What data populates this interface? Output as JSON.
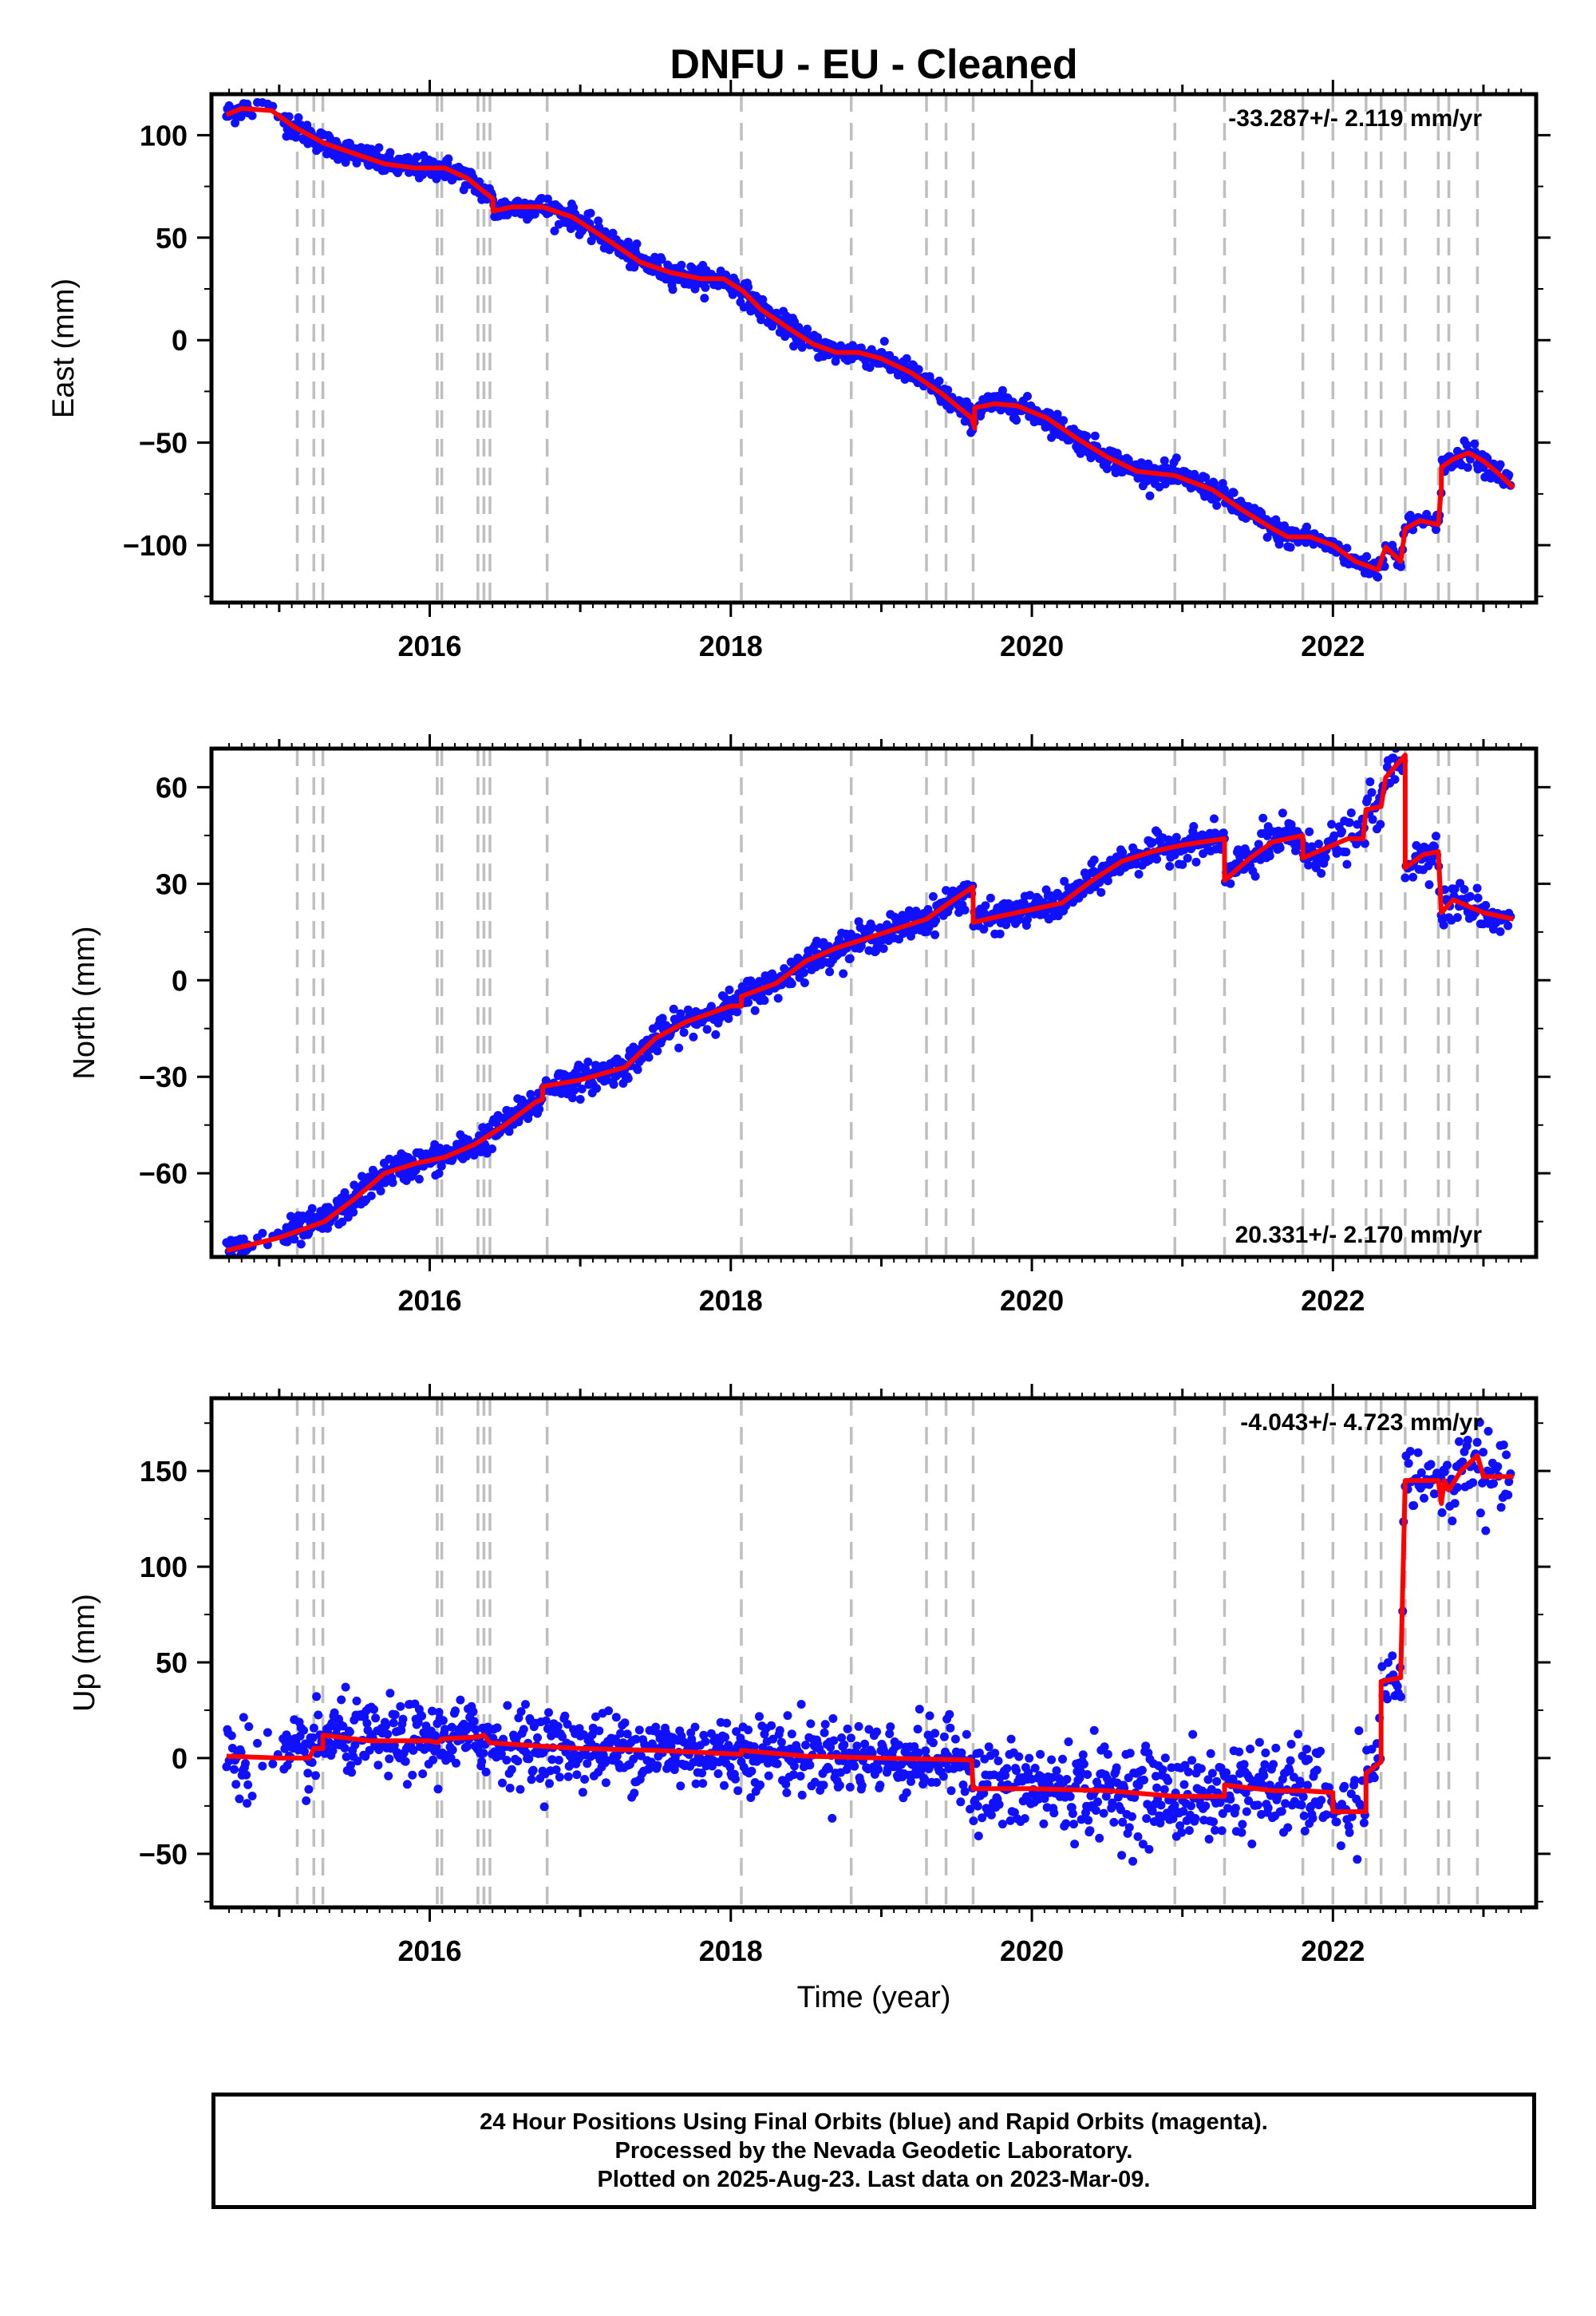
{
  "title": "DNFU  - EU - Cleaned",
  "xlabel": "Time (year)",
  "colors": {
    "points": "#1010ff",
    "model": "#ff0000",
    "events": "#bfbfbf",
    "frame": "#000000"
  },
  "chart_data": [
    {
      "type": "scatter",
      "component": "East",
      "ylabel": "East (mm)",
      "rate_text": "-33.287+/- 2.119 mm/yr",
      "rate_position": "top-right",
      "xlim": [
        2014.55,
        2023.35
      ],
      "ylim": [
        -128,
        120
      ],
      "yticks": [
        100,
        50,
        0,
        -50,
        -100
      ],
      "yticklabels": [
        "100",
        "50",
        "0",
        "−50",
        "−100"
      ],
      "xticks": [
        2016,
        2018,
        2020,
        2022
      ],
      "xticklabels": [
        "2016",
        "2018",
        "2020",
        "2022"
      ],
      "grid": false,
      "model_line": [
        [
          2014.65,
          110
        ],
        [
          2014.75,
          113
        ],
        [
          2014.95,
          112
        ],
        [
          2015.1,
          104
        ],
        [
          2015.2,
          100
        ],
        [
          2015.3,
          96
        ],
        [
          2015.5,
          91
        ],
        [
          2015.7,
          86
        ],
        [
          2015.9,
          84
        ],
        [
          2016.1,
          84
        ],
        [
          2016.25,
          79
        ],
        [
          2016.35,
          73
        ],
        [
          2016.42,
          69
        ],
        [
          2016.42,
          63
        ],
        [
          2016.55,
          65
        ],
        [
          2016.75,
          65
        ],
        [
          2016.95,
          60
        ],
        [
          2017.2,
          48
        ],
        [
          2017.4,
          38
        ],
        [
          2017.6,
          33
        ],
        [
          2017.8,
          30
        ],
        [
          2017.95,
          30
        ],
        [
          2018.08,
          24
        ],
        [
          2018.2,
          15
        ],
        [
          2018.4,
          5
        ],
        [
          2018.55,
          -2
        ],
        [
          2018.7,
          -6
        ],
        [
          2018.85,
          -6
        ],
        [
          2019.0,
          -9
        ],
        [
          2019.2,
          -16
        ],
        [
          2019.4,
          -26
        ],
        [
          2019.6,
          -38
        ],
        [
          2019.62,
          -43
        ],
        [
          2019.62,
          -33
        ],
        [
          2019.75,
          -31
        ],
        [
          2019.9,
          -32
        ],
        [
          2020.1,
          -38
        ],
        [
          2020.3,
          -48
        ],
        [
          2020.5,
          -57
        ],
        [
          2020.7,
          -64
        ],
        [
          2020.95,
          -66
        ],
        [
          2021.2,
          -73
        ],
        [
          2021.4,
          -83
        ],
        [
          2021.6,
          -92
        ],
        [
          2021.7,
          -96
        ],
        [
          2021.85,
          -96
        ],
        [
          2022.0,
          -100
        ],
        [
          2022.15,
          -108
        ],
        [
          2022.3,
          -112
        ],
        [
          2022.35,
          -101
        ],
        [
          2022.45,
          -108
        ],
        [
          2022.48,
          -92
        ],
        [
          2022.58,
          -88
        ],
        [
          2022.7,
          -90
        ],
        [
          2022.72,
          -72
        ],
        [
          2022.72,
          -62
        ],
        [
          2022.8,
          -58
        ],
        [
          2022.9,
          -55
        ],
        [
          2023.0,
          -59
        ],
        [
          2023.1,
          -65
        ],
        [
          2023.2,
          -72
        ]
      ],
      "points_note": "",
      "events": [
        2015.12,
        2015.23,
        2015.29,
        2016.05,
        2016.08,
        2016.32,
        2016.36,
        2016.4,
        2016.78,
        2018.07,
        2018.8,
        2019.3,
        2019.43,
        2019.61,
        2020.95,
        2021.28,
        2021.8,
        2022.0,
        2022.22,
        2022.32,
        2022.48,
        2022.7,
        2022.77,
        2022.96
      ]
    },
    {
      "type": "scatter",
      "component": "North",
      "ylabel": "North (mm)",
      "rate_text": "20.331+/- 2.170 mm/yr",
      "rate_position": "bottom-right",
      "xlim": [
        2014.55,
        2023.35
      ],
      "ylim": [
        -86,
        72
      ],
      "yticks": [
        60,
        30,
        0,
        -30,
        -60
      ],
      "yticklabels": [
        "60",
        "30",
        "0",
        "−30",
        "−60"
      ],
      "xticks": [
        2016,
        2018,
        2020,
        2022
      ],
      "xticklabels": [
        "2016",
        "2018",
        "2020",
        "2022"
      ],
      "grid": false,
      "model_line": [
        [
          2014.65,
          -84
        ],
        [
          2015.0,
          -80
        ],
        [
          2015.3,
          -75
        ],
        [
          2015.5,
          -68
        ],
        [
          2015.7,
          -60
        ],
        [
          2015.9,
          -57
        ],
        [
          2016.1,
          -55
        ],
        [
          2016.3,
          -51
        ],
        [
          2016.5,
          -45
        ],
        [
          2016.7,
          -38
        ],
        [
          2016.75,
          -37
        ],
        [
          2016.75,
          -33
        ],
        [
          2017.0,
          -31
        ],
        [
          2017.3,
          -27
        ],
        [
          2017.5,
          -18
        ],
        [
          2017.7,
          -13
        ],
        [
          2018.0,
          -8
        ],
        [
          2018.07,
          -8
        ],
        [
          2018.07,
          -5
        ],
        [
          2018.3,
          -1
        ],
        [
          2018.5,
          6
        ],
        [
          2018.7,
          10
        ],
        [
          2018.9,
          13
        ],
        [
          2019.1,
          16
        ],
        [
          2019.3,
          19
        ],
        [
          2019.45,
          24
        ],
        [
          2019.61,
          29
        ],
        [
          2019.61,
          18
        ],
        [
          2019.8,
          20
        ],
        [
          2020.0,
          22
        ],
        [
          2020.2,
          24
        ],
        [
          2020.4,
          31
        ],
        [
          2020.6,
          37
        ],
        [
          2020.8,
          40
        ],
        [
          2021.0,
          42
        ],
        [
          2021.28,
          44
        ],
        [
          2021.28,
          31
        ],
        [
          2021.45,
          38
        ],
        [
          2021.6,
          43
        ],
        [
          2021.8,
          45
        ],
        [
          2021.8,
          38
        ],
        [
          2022.0,
          42
        ],
        [
          2022.1,
          44
        ],
        [
          2022.2,
          44
        ],
        [
          2022.22,
          53
        ],
        [
          2022.32,
          54
        ],
        [
          2022.35,
          63
        ],
        [
          2022.48,
          70
        ],
        [
          2022.48,
          35
        ],
        [
          2022.6,
          39
        ],
        [
          2022.7,
          40
        ],
        [
          2022.72,
          21
        ],
        [
          2022.8,
          25
        ],
        [
          2023.0,
          21
        ],
        [
          2023.2,
          19
        ]
      ],
      "points_note": "",
      "events": [
        2015.12,
        2015.23,
        2015.29,
        2016.05,
        2016.08,
        2016.32,
        2016.36,
        2016.4,
        2016.78,
        2018.07,
        2018.8,
        2019.3,
        2019.43,
        2019.61,
        2020.95,
        2021.28,
        2021.8,
        2022.0,
        2022.22,
        2022.32,
        2022.48,
        2022.7,
        2022.77,
        2022.96
      ]
    },
    {
      "type": "scatter",
      "component": "Up",
      "ylabel": "Up (mm)",
      "rate_text": "-4.043+/- 4.723 mm/yr",
      "rate_position": "top-right",
      "xlim": [
        2014.55,
        2023.35
      ],
      "ylim": [
        -78,
        188
      ],
      "yticks": [
        150,
        100,
        50,
        0,
        -50
      ],
      "yticklabels": [
        "150",
        "100",
        "50",
        "0",
        "−50"
      ],
      "xticks": [
        2016,
        2018,
        2020,
        2022
      ],
      "xticklabels": [
        "2016",
        "2018",
        "2020",
        "2022"
      ],
      "grid": false,
      "model_line": [
        [
          2014.65,
          1
        ],
        [
          2015.0,
          0
        ],
        [
          2015.2,
          0
        ],
        [
          2015.23,
          5
        ],
        [
          2015.29,
          5
        ],
        [
          2015.29,
          12
        ],
        [
          2015.6,
          9
        ],
        [
          2016.0,
          9
        ],
        [
          2016.05,
          8
        ],
        [
          2016.08,
          10
        ],
        [
          2016.32,
          11
        ],
        [
          2016.36,
          12
        ],
        [
          2016.4,
          8
        ],
        [
          2016.78,
          6
        ],
        [
          2017.0,
          5
        ],
        [
          2017.5,
          4
        ],
        [
          2018.07,
          2
        ],
        [
          2018.07,
          4
        ],
        [
          2018.5,
          1
        ],
        [
          2019.0,
          0
        ],
        [
          2019.6,
          -1
        ],
        [
          2019.61,
          -16
        ],
        [
          2020.0,
          -16
        ],
        [
          2020.5,
          -17
        ],
        [
          2020.95,
          -20
        ],
        [
          2021.28,
          -20
        ],
        [
          2021.28,
          -14
        ],
        [
          2021.6,
          -17
        ],
        [
          2021.8,
          -17
        ],
        [
          2022.0,
          -18
        ],
        [
          2022.0,
          -28
        ],
        [
          2022.22,
          -28
        ],
        [
          2022.22,
          -8
        ],
        [
          2022.32,
          -2
        ],
        [
          2022.32,
          40
        ],
        [
          2022.45,
          42
        ],
        [
          2022.48,
          145
        ],
        [
          2022.7,
          145
        ],
        [
          2022.72,
          133
        ],
        [
          2022.74,
          145
        ],
        [
          2022.77,
          140
        ],
        [
          2022.85,
          150
        ],
        [
          2022.96,
          158
        ],
        [
          2023.0,
          147
        ],
        [
          2023.2,
          147
        ]
      ],
      "points_note": "",
      "events": [
        2015.12,
        2015.23,
        2015.29,
        2016.05,
        2016.08,
        2016.32,
        2016.36,
        2016.4,
        2016.78,
        2018.07,
        2018.8,
        2019.3,
        2019.43,
        2019.61,
        2020.95,
        2021.28,
        2021.8,
        2022.0,
        2022.22,
        2022.32,
        2022.48,
        2022.7,
        2022.77,
        2022.96
      ]
    }
  ],
  "footer": {
    "line1": "24 Hour Positions Using Final Orbits (blue) and Rapid Orbits (magenta).",
    "line2": "Processed by the Nevada Geodetic Laboratory.",
    "line3": "Plotted on 2025-Aug-23. Last data on 2023-Mar-09."
  }
}
